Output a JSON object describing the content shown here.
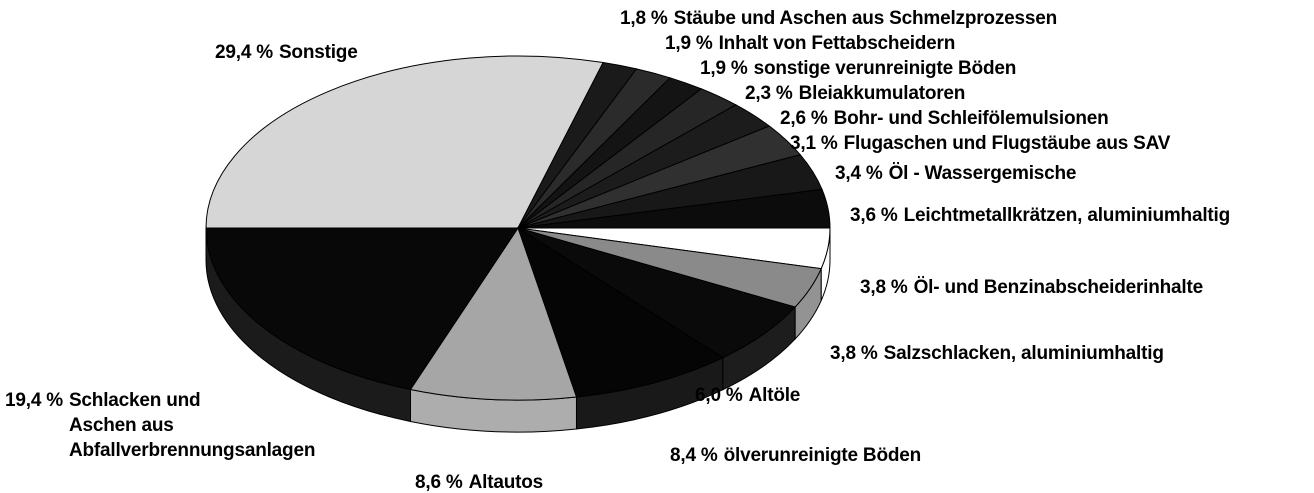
{
  "chart_data": {
    "type": "pie",
    "categories": [
      "Sonstige",
      "Stäube und Aschen aus Schmelzprozessen",
      "Inhalt von Fettabscheidern",
      "sonstige verunreinigte Böden",
      "Bleiakkumulatoren",
      "Bohr- und Schleifölemulsionen",
      "Flugaschen und Flugstäube aus SAV",
      "Öl - Wassergemische",
      "Leichtmetallkrätzen, aluminiumhaltig",
      "Öl- und Benzinabscheiderinhalte",
      "Salzschlacken, aluminiumhaltig",
      "Altöle",
      "ölverunreinigte Böden",
      "Altautos",
      "Schlacken und\nAschen aus\nAbfallverbrennungsanlagen"
    ],
    "values": [
      29.4,
      1.8,
      1.9,
      1.9,
      2.3,
      2.6,
      3.1,
      3.4,
      3.6,
      3.8,
      3.8,
      6.0,
      8.4,
      8.6,
      19.4
    ],
    "value_labels": [
      "29,4 %",
      "1,8 %",
      "1,9 %",
      "1,9 %",
      "2,3 %",
      "2,6 %",
      "3,1 %",
      "3,4 %",
      "3,6 %",
      "3,8 %",
      "3,8 %",
      "6,0 %",
      "8,4 %",
      "8,6 %",
      "19,4 %"
    ],
    "colors": [
      "#d6d6d6",
      "#1a1a1a",
      "#2b2b2b",
      "#141414",
      "#262626",
      "#1c1c1c",
      "#303030",
      "#181818",
      "#0c0c0c",
      "#ffffff",
      "#8a8a8a",
      "#0a0a0a",
      "#050505",
      "#a6a6a6",
      "#080808"
    ]
  }
}
